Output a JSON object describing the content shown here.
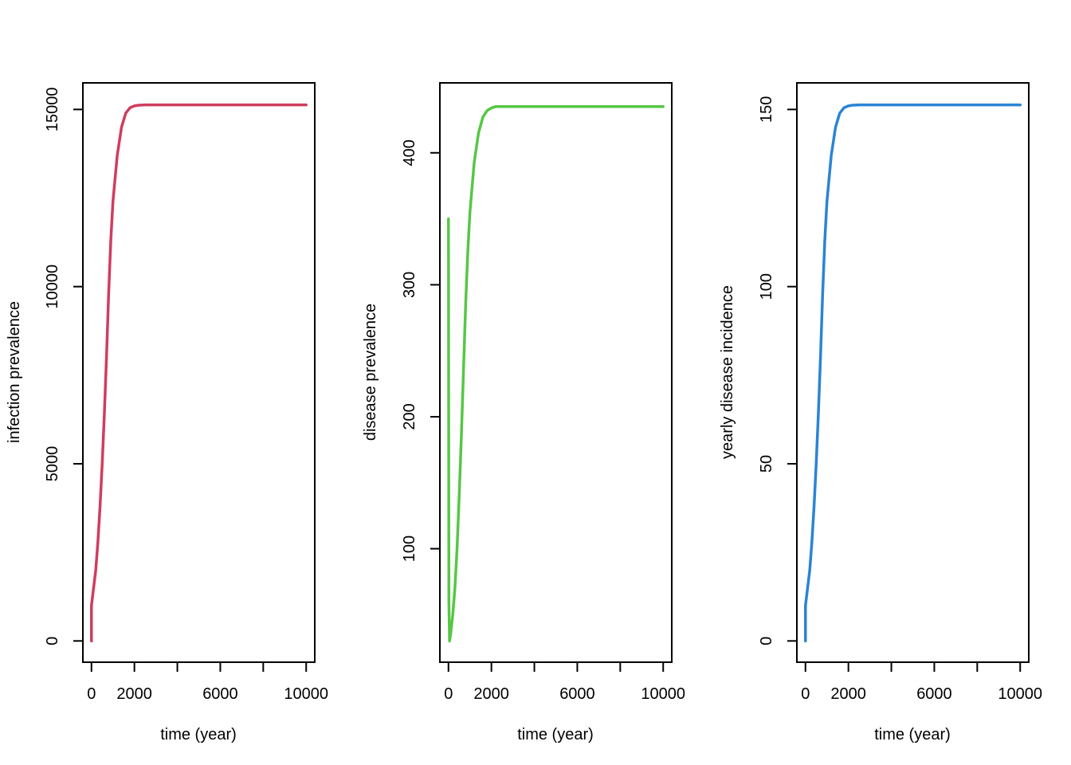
{
  "chart_data": [
    {
      "type": "line",
      "title": "",
      "xlabel": "time (year)",
      "ylabel": "infection prevalence",
      "xlim": [
        -400,
        10400
      ],
      "ylim": [
        -600,
        15750
      ],
      "xticks": [
        0,
        2000,
        4000,
        6000,
        8000,
        10000
      ],
      "xtick_labels": [
        "0",
        "2000",
        "",
        "6000",
        "",
        "10000"
      ],
      "yticks": [
        0,
        5000,
        10000,
        15000
      ],
      "ytick_labels": [
        "0",
        "5000",
        "10000",
        "15000"
      ],
      "grid": false,
      "series": [
        {
          "color": "#d03d5e",
          "x": [
            0,
            0,
            100,
            200,
            300,
            400,
            500,
            600,
            700,
            800,
            900,
            1000,
            1200,
            1400,
            1600,
            1800,
            2000,
            2200,
            2500,
            3000,
            4000,
            6000,
            8000,
            10000
          ],
          "y": [
            0,
            1000,
            1500,
            2000,
            2800,
            3800,
            5000,
            6400,
            8000,
            9800,
            11300,
            12400,
            13700,
            14500,
            14900,
            15050,
            15100,
            15120,
            15130,
            15130,
            15130,
            15130,
            15130,
            15130
          ]
        }
      ]
    },
    {
      "type": "line",
      "title": "",
      "xlabel": "time (year)",
      "ylabel": "disease prevalence",
      "xlim": [
        -400,
        10400
      ],
      "ylim": [
        14,
        453
      ],
      "xticks": [
        0,
        2000,
        4000,
        6000,
        8000,
        10000
      ],
      "xtick_labels": [
        "0",
        "2000",
        "",
        "6000",
        "",
        "10000"
      ],
      "yticks": [
        100,
        200,
        300,
        400
      ],
      "ytick_labels": [
        "100",
        "200",
        "300",
        "400"
      ],
      "grid": false,
      "series": [
        {
          "color": "#56c745",
          "x": [
            0,
            10,
            20,
            50,
            100,
            200,
            300,
            400,
            500,
            600,
            700,
            800,
            900,
            1000,
            1200,
            1400,
            1600,
            1800,
            2000,
            2200,
            2500,
            3000,
            4000,
            6000,
            8000,
            10000
          ],
          "y": [
            350,
            200,
            60,
            30,
            35,
            50,
            70,
            100,
            140,
            185,
            235,
            285,
            325,
            355,
            393,
            415,
            427,
            432,
            434,
            435,
            435,
            435,
            435,
            435,
            435,
            435
          ]
        }
      ]
    },
    {
      "type": "line",
      "title": "",
      "xlabel": "time (year)",
      "ylabel": "yearly disease incidence",
      "xlim": [
        -400,
        10400
      ],
      "ylim": [
        -6,
        157.5
      ],
      "xticks": [
        0,
        2000,
        4000,
        6000,
        8000,
        10000
      ],
      "xtick_labels": [
        "0",
        "2000",
        "",
        "6000",
        "",
        "10000"
      ],
      "yticks": [
        0,
        50,
        100,
        150
      ],
      "ytick_labels": [
        "0",
        "50",
        "100",
        "150"
      ],
      "grid": false,
      "series": [
        {
          "color": "#2a84d5",
          "x": [
            0,
            0,
            100,
            200,
            300,
            400,
            500,
            600,
            700,
            800,
            900,
            1000,
            1200,
            1400,
            1600,
            1800,
            2000,
            2200,
            2500,
            3000,
            4000,
            6000,
            8000,
            10000
          ],
          "y": [
            0,
            10,
            15,
            20,
            28,
            38,
            50,
            64,
            80,
            98,
            113,
            124,
            137,
            145,
            149,
            150.5,
            151,
            151.2,
            151.3,
            151.3,
            151.3,
            151.3,
            151.3,
            151.3
          ]
        }
      ]
    }
  ]
}
